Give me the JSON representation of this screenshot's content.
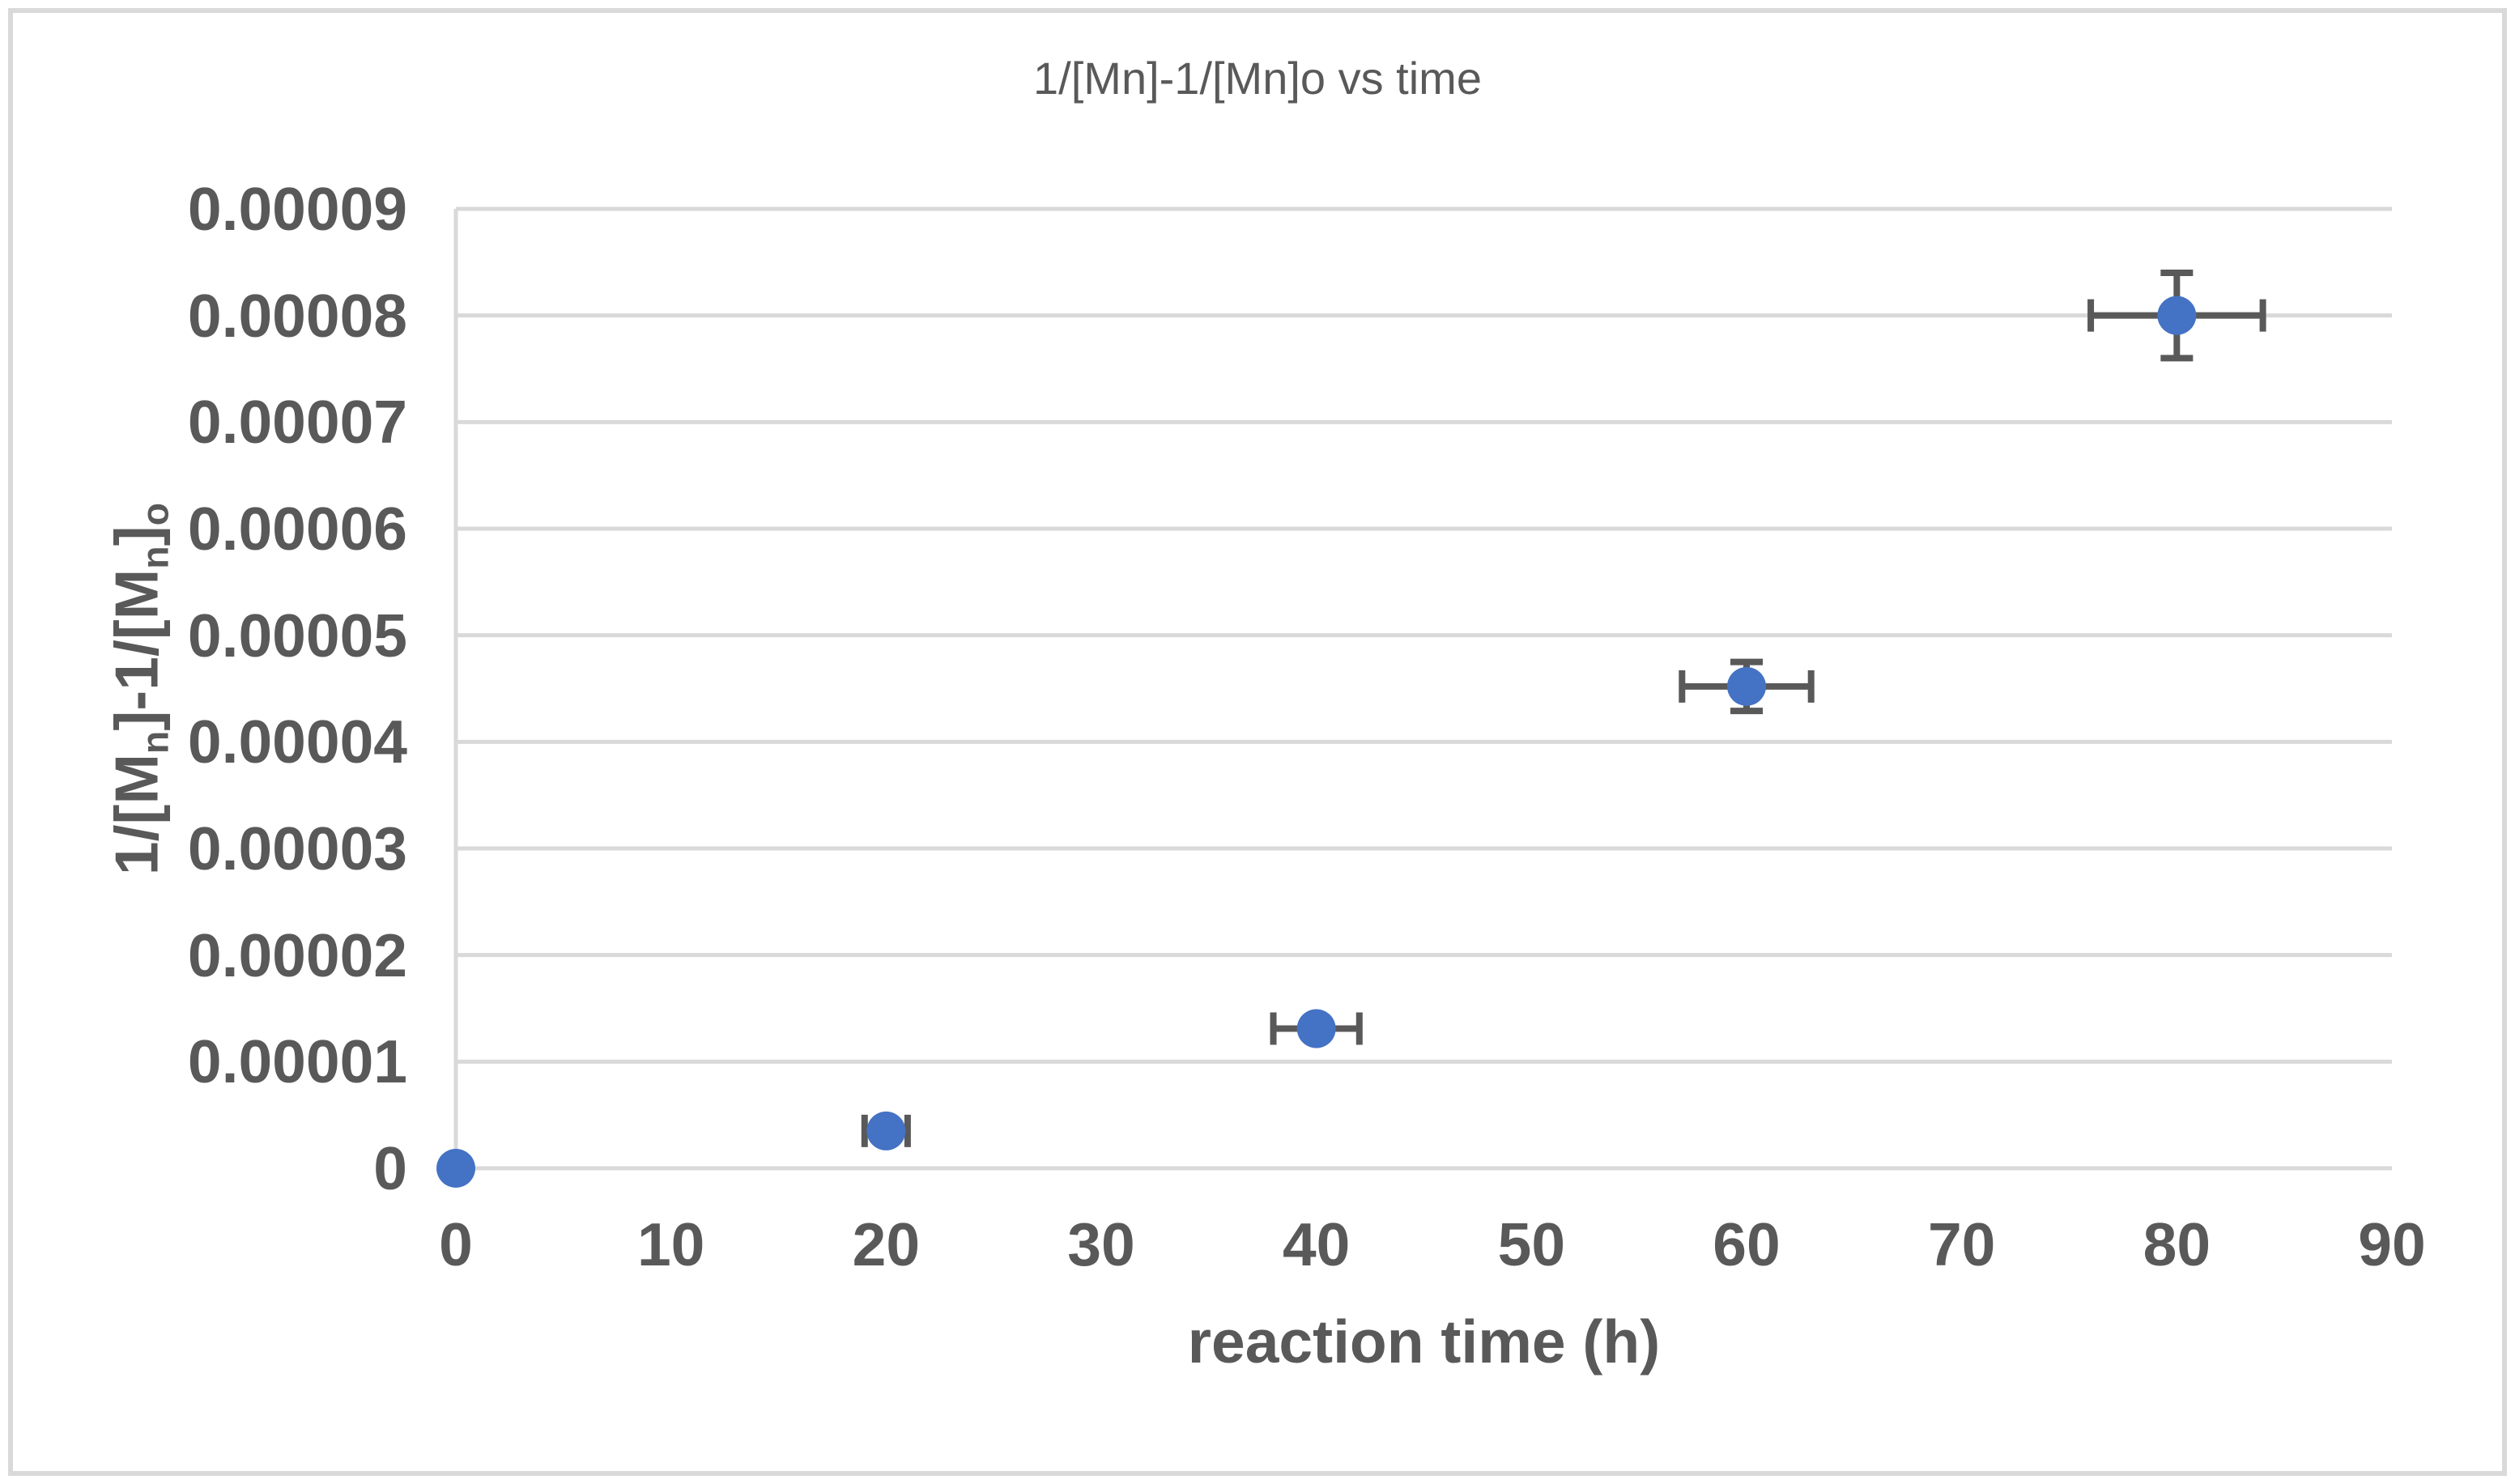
{
  "chart_data": {
    "type": "scatter",
    "title": "1/[Mn]-1/[Mn]o vs time",
    "xlabel": "reaction time (h)",
    "ylabel_plain": "1/[Mn]-1/[Mn]o",
    "ylabel_segments": [
      {
        "text": "1/[M",
        "sub": false
      },
      {
        "text": "n",
        "sub": true
      },
      {
        "text": "]-1/[M",
        "sub": false
      },
      {
        "text": "n",
        "sub": true
      },
      {
        "text": "]",
        "sub": false
      },
      {
        "text": "o",
        "sub": true
      }
    ],
    "xlim": [
      0,
      90
    ],
    "ylim": [
      0,
      9e-05
    ],
    "grid": "horizontal",
    "legend": "none",
    "x_axis": {
      "ticks": [
        {
          "label": "0",
          "value": 0
        },
        {
          "label": "10",
          "value": 10
        },
        {
          "label": "20",
          "value": 20
        },
        {
          "label": "30",
          "value": 30
        },
        {
          "label": "40",
          "value": 40
        },
        {
          "label": "50",
          "value": 50
        },
        {
          "label": "60",
          "value": 60
        },
        {
          "label": "70",
          "value": 70
        },
        {
          "label": "80",
          "value": 80
        },
        {
          "label": "90",
          "value": 90
        }
      ]
    },
    "y_axis": {
      "ticks": [
        {
          "label": "0",
          "value": 0
        },
        {
          "label": "0.00001",
          "value": 1e-05
        },
        {
          "label": "0.00002",
          "value": 2e-05
        },
        {
          "label": "0.00003",
          "value": 3e-05
        },
        {
          "label": "0.00004",
          "value": 4e-05
        },
        {
          "label": "0.00005",
          "value": 5e-05
        },
        {
          "label": "0.00006",
          "value": 6e-05
        },
        {
          "label": "0.00007",
          "value": 7e-05
        },
        {
          "label": "0.00008",
          "value": 8e-05
        },
        {
          "label": "0.00009",
          "value": 9e-05
        }
      ]
    },
    "points": [
      {
        "x": 0,
        "y": 0,
        "x_err": 0,
        "y_err": 0
      },
      {
        "x": 20,
        "y": 3.5e-06,
        "x_err": 1,
        "y_err": 1.8e-07
      },
      {
        "x": 40,
        "y": 1.31e-05,
        "x_err": 2,
        "y_err": 6.5e-07
      },
      {
        "x": 60,
        "y": 4.52e-05,
        "x_err": 3,
        "y_err": 2.3e-06
      },
      {
        "x": 80,
        "y": 8e-05,
        "x_err": 4,
        "y_err": 4e-06
      }
    ],
    "colors": {
      "marker": "#4472C4",
      "error_bar": "#595959",
      "gridline": "#D9D9D9",
      "text": "#595959",
      "border": "#D9D9D9",
      "background": "#FFFFFF"
    }
  }
}
